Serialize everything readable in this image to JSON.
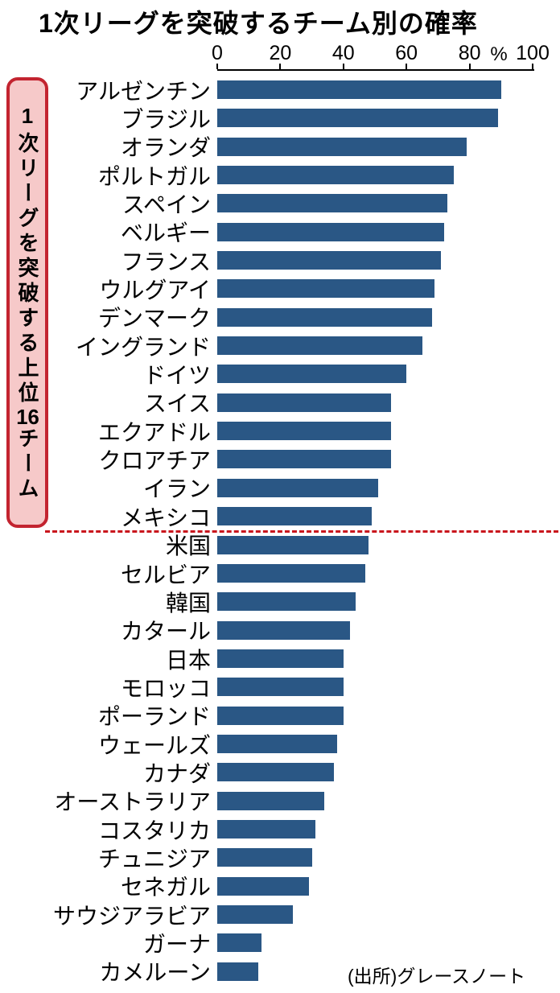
{
  "title": "1次リーグを突破するチーム別の確率",
  "side_label": {
    "prefix": "1次リーグを突破する上位",
    "number": "16",
    "suffix": "チーム"
  },
  "axis": {
    "ticks": [
      0,
      20,
      40,
      60,
      80,
      100
    ],
    "unit": "%"
  },
  "source": "(出所)グレースノート",
  "colors": {
    "bar": "#2a5785",
    "divider": "#c9161d",
    "box_border": "#c32430",
    "box_fill": "#f6c9c9"
  },
  "chart_data": {
    "type": "bar",
    "orientation": "horizontal",
    "title": "1次リーグを突破するチーム別の確率",
    "xlabel": "%",
    "xlim": [
      0,
      100
    ],
    "grid": false,
    "group_divider_after_index": 15,
    "group_divider_label": "1次リーグを突破する上位16チーム",
    "categories": [
      "アルゼンチン",
      "ブラジル",
      "オランダ",
      "ポルトガル",
      "スペイン",
      "ベルギー",
      "フランス",
      "ウルグアイ",
      "デンマーク",
      "イングランド",
      "ドイツ",
      "スイス",
      "エクアドル",
      "クロアチア",
      "イラン",
      "メキシコ",
      "米国",
      "セルビア",
      "韓国",
      "カタール",
      "日本",
      "モロッコ",
      "ポーランド",
      "ウェールズ",
      "カナダ",
      "オーストラリア",
      "コスタリカ",
      "チュニジア",
      "セネガル",
      "サウジアラビア",
      "ガーナ",
      "カメルーン"
    ],
    "values": [
      90,
      89,
      79,
      75,
      73,
      72,
      71,
      69,
      68,
      65,
      60,
      55,
      55,
      55,
      51,
      49,
      48,
      47,
      44,
      42,
      40,
      40,
      40,
      38,
      37,
      34,
      31,
      30,
      29,
      24,
      14,
      13
    ]
  }
}
